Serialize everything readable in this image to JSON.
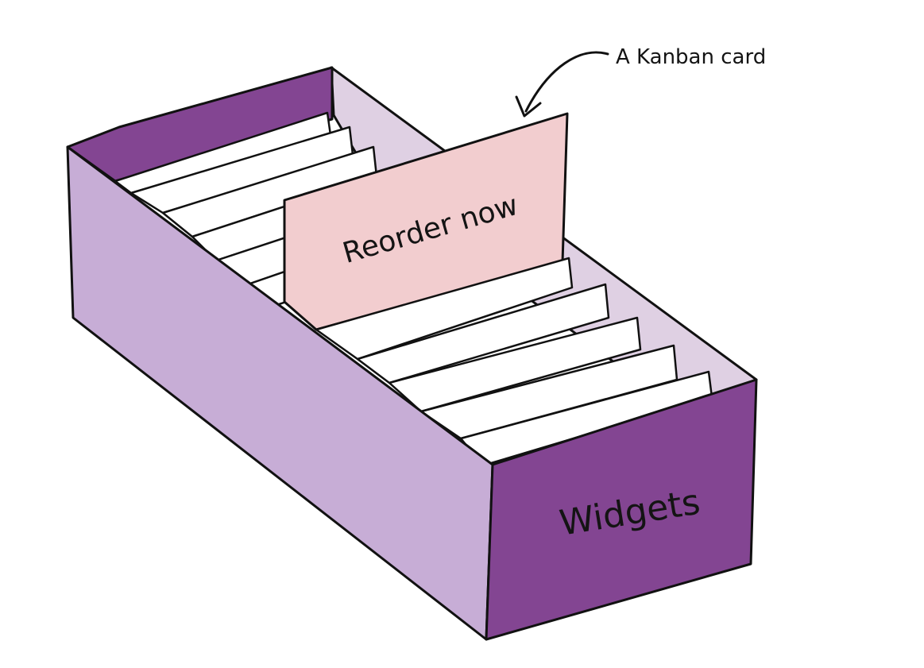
{
  "diagram": {
    "callout_label": "A Kanban card",
    "card_text": "Reorder now",
    "box_label": "Widgets"
  },
  "colors": {
    "box_dark_purple": "#834592",
    "box_light_purple": "#c7add6",
    "box_inner_lavender": "#dfd0e3",
    "kanban_card_pink": "#f2cdcf",
    "dividers_white": "#ffffff",
    "ink": "#111111"
  }
}
